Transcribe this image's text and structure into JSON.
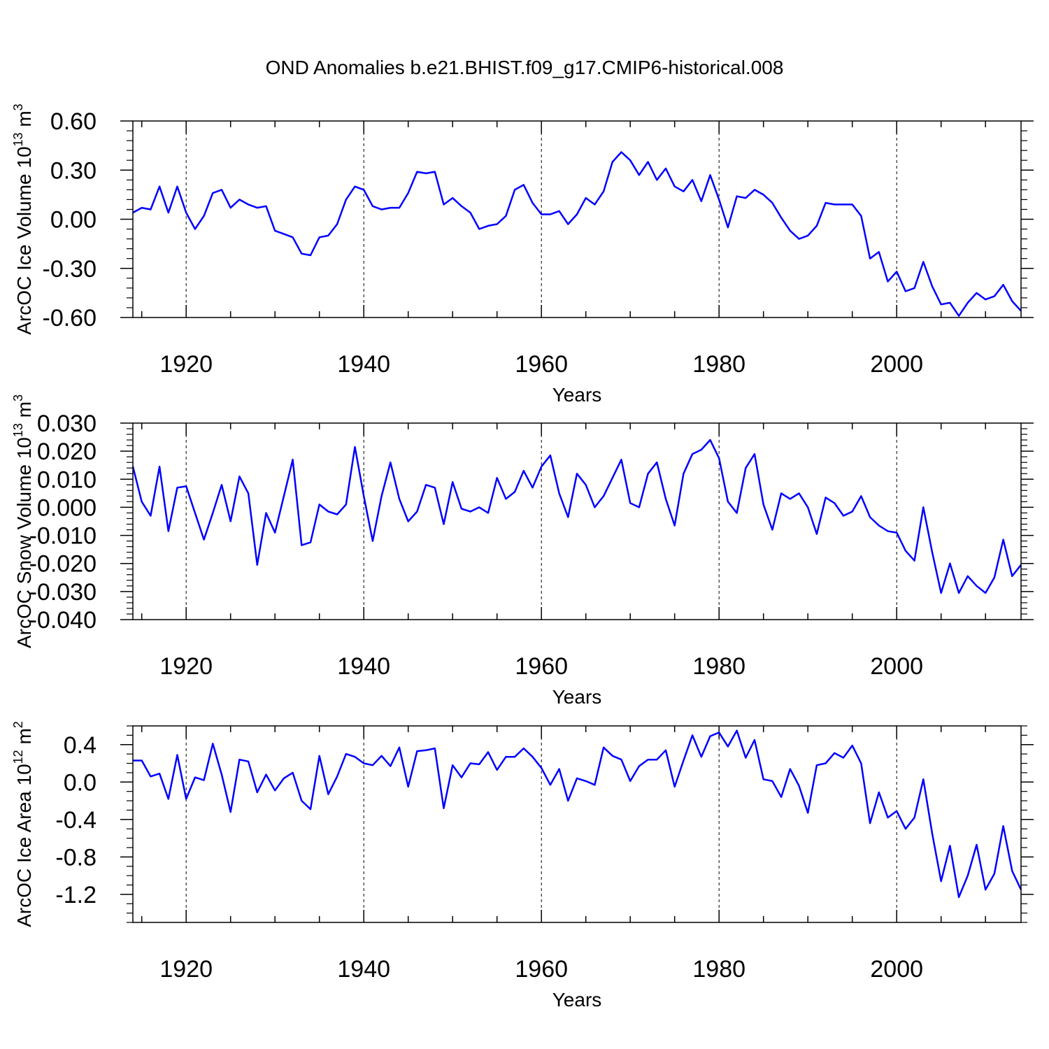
{
  "title": "OND Anomalies b.e21.BHIST.f09_g17.CMIP6-historical.008",
  "line_color": "#0000ff",
  "chart_data": [
    {
      "type": "line",
      "ylabel": "ArcOC Ice Volume 10",
      "ylabel_exp": "13",
      "ylabel_unit": " m",
      "ylabel_unit_exp": "3",
      "xlabel": "Years",
      "xlim": [
        1914,
        2014
      ],
      "ylim": [
        -0.6,
        0.6
      ],
      "xticks": [
        1920,
        1940,
        1960,
        1980,
        2000
      ],
      "xtick_labels": [
        "1920",
        "1940",
        "1960",
        "1980",
        "2000"
      ],
      "yticks": [
        -0.6,
        -0.3,
        0.0,
        0.3,
        0.6
      ],
      "ytick_labels": [
        "-0.60",
        "-0.30",
        "0.00",
        "0.30",
        "0.60"
      ],
      "yminor_step": 0.06,
      "x": [
        1914,
        1915,
        1916,
        1917,
        1918,
        1919,
        1920,
        1921,
        1922,
        1923,
        1924,
        1925,
        1926,
        1927,
        1928,
        1929,
        1930,
        1931,
        1932,
        1933,
        1934,
        1935,
        1936,
        1937,
        1938,
        1939,
        1940,
        1941,
        1942,
        1943,
        1944,
        1945,
        1946,
        1947,
        1948,
        1949,
        1950,
        1951,
        1952,
        1953,
        1954,
        1955,
        1956,
        1957,
        1958,
        1959,
        1960,
        1961,
        1962,
        1963,
        1964,
        1965,
        1966,
        1967,
        1968,
        1969,
        1970,
        1971,
        1972,
        1973,
        1974,
        1975,
        1976,
        1977,
        1978,
        1979,
        1980,
        1981,
        1982,
        1983,
        1984,
        1985,
        1986,
        1987,
        1988,
        1989,
        1990,
        1991,
        1992,
        1993,
        1994,
        1995,
        1996,
        1997,
        1998,
        1999,
        2000,
        2001,
        2002,
        2003,
        2004,
        2005,
        2006,
        2007,
        2008,
        2009,
        2010,
        2011,
        2012,
        2013,
        2014
      ],
      "values": [
        0.04,
        0.07,
        0.06,
        0.2,
        0.04,
        0.2,
        0.04,
        -0.06,
        0.02,
        0.16,
        0.18,
        0.07,
        0.12,
        0.09,
        0.07,
        0.08,
        -0.07,
        -0.09,
        -0.11,
        -0.21,
        -0.22,
        -0.11,
        -0.1,
        -0.03,
        0.12,
        0.2,
        0.18,
        0.08,
        0.06,
        0.07,
        0.07,
        0.16,
        0.29,
        0.28,
        0.29,
        0.09,
        0.13,
        0.08,
        0.04,
        -0.06,
        -0.04,
        -0.03,
        0.02,
        0.18,
        0.21,
        0.1,
        0.03,
        0.03,
        0.05,
        -0.03,
        0.03,
        0.13,
        0.09,
        0.17,
        0.35,
        0.41,
        0.36,
        0.27,
        0.35,
        0.24,
        0.31,
        0.2,
        0.17,
        0.24,
        0.11,
        0.27,
        0.12,
        -0.05,
        0.14,
        0.13,
        0.18,
        0.15,
        0.1,
        0.01,
        -0.07,
        -0.12,
        -0.1,
        -0.04,
        0.1,
        0.09,
        0.09,
        0.09,
        0.02,
        -0.24,
        -0.2,
        -0.38,
        -0.32,
        -0.44,
        -0.42,
        -0.26,
        -0.41,
        -0.52,
        -0.51,
        -0.59,
        -0.51,
        -0.45,
        -0.49,
        -0.47,
        -0.4,
        -0.5,
        -0.56
      ]
    },
    {
      "type": "line",
      "ylabel": "ArcOC Snow Volume 10",
      "ylabel_exp": "13",
      "ylabel_unit": " m",
      "ylabel_unit_exp": "3",
      "xlabel": "Years",
      "xlim": [
        1914,
        2014
      ],
      "ylim": [
        -0.04,
        0.03
      ],
      "xticks": [
        1920,
        1940,
        1960,
        1980,
        2000
      ],
      "xtick_labels": [
        "1920",
        "1940",
        "1960",
        "1980",
        "2000"
      ],
      "yticks": [
        -0.04,
        -0.03,
        -0.02,
        -0.01,
        0.0,
        0.01,
        0.02,
        0.03
      ],
      "ytick_labels": [
        "-0.040",
        "-0.030",
        "-0.020",
        "-0.010",
        "0.000",
        "0.010",
        "0.020",
        "0.030"
      ],
      "yminor_step": 0.002,
      "x": [
        1914,
        1915,
        1916,
        1917,
        1918,
        1919,
        1920,
        1921,
        1922,
        1923,
        1924,
        1925,
        1926,
        1927,
        1928,
        1929,
        1930,
        1931,
        1932,
        1933,
        1934,
        1935,
        1936,
        1937,
        1938,
        1939,
        1940,
        1941,
        1942,
        1943,
        1944,
        1945,
        1946,
        1947,
        1948,
        1949,
        1950,
        1951,
        1952,
        1953,
        1954,
        1955,
        1956,
        1957,
        1958,
        1959,
        1960,
        1961,
        1962,
        1963,
        1964,
        1965,
        1966,
        1967,
        1968,
        1969,
        1970,
        1971,
        1972,
        1973,
        1974,
        1975,
        1976,
        1977,
        1978,
        1979,
        1980,
        1981,
        1982,
        1983,
        1984,
        1985,
        1986,
        1987,
        1988,
        1989,
        1990,
        1991,
        1992,
        1993,
        1994,
        1995,
        1996,
        1997,
        1998,
        1999,
        2000,
        2001,
        2002,
        2003,
        2004,
        2005,
        2006,
        2007,
        2008,
        2009,
        2010,
        2011,
        2012,
        2013,
        2014
      ],
      "values": [
        0.0145,
        0.002,
        -0.003,
        0.0145,
        -0.0085,
        0.007,
        0.0075,
        -0.002,
        -0.0115,
        -0.002,
        0.008,
        -0.005,
        0.011,
        0.005,
        -0.0205,
        -0.002,
        -0.009,
        0.004,
        0.017,
        -0.0135,
        -0.0125,
        0.001,
        -0.0015,
        -0.0025,
        0.001,
        0.0215,
        0.004,
        -0.012,
        0.004,
        0.016,
        0.003,
        -0.005,
        -0.0015,
        0.008,
        0.007,
        -0.006,
        0.009,
        -0.0005,
        -0.0015,
        0.0,
        -0.002,
        0.0105,
        0.003,
        0.0055,
        0.013,
        0.007,
        0.0145,
        0.0185,
        0.005,
        -0.0035,
        0.012,
        0.008,
        0.0,
        0.004,
        0.0105,
        0.017,
        0.0015,
        0.0,
        0.012,
        0.016,
        0.003,
        -0.0065,
        0.012,
        0.019,
        0.0205,
        0.024,
        0.0175,
        0.002,
        -0.002,
        0.014,
        0.019,
        0.001,
        -0.008,
        0.005,
        0.003,
        0.005,
        0.0,
        -0.0095,
        0.0035,
        0.0015,
        -0.003,
        -0.0015,
        0.004,
        -0.0035,
        -0.0065,
        -0.0085,
        -0.009,
        -0.0155,
        -0.019,
        0.0,
        -0.016,
        -0.0305,
        -0.02,
        -0.0305,
        -0.0245,
        -0.028,
        -0.0305,
        -0.025,
        -0.0115,
        -0.0245,
        -0.0205
      ]
    },
    {
      "type": "line",
      "ylabel": "ArcOC Ice Area 10",
      "ylabel_exp": "12",
      "ylabel_unit": " m",
      "ylabel_unit_exp": "2",
      "xlabel": "Years",
      "xlim": [
        1914,
        2014
      ],
      "ylim": [
        -1.5,
        0.6
      ],
      "xticks": [
        1920,
        1940,
        1960,
        1980,
        2000
      ],
      "xtick_labels": [
        "1920",
        "1940",
        "1960",
        "1980",
        "2000"
      ],
      "yticks": [
        -1.2,
        -0.8,
        -0.4,
        0.0,
        0.4
      ],
      "ytick_labels": [
        "-1.2",
        "-0.8",
        "-0.4",
        "0.0",
        "0.4"
      ],
      "yminor_step": 0.1,
      "x": [
        1914,
        1915,
        1916,
        1917,
        1918,
        1919,
        1920,
        1921,
        1922,
        1923,
        1924,
        1925,
        1926,
        1927,
        1928,
        1929,
        1930,
        1931,
        1932,
        1933,
        1934,
        1935,
        1936,
        1937,
        1938,
        1939,
        1940,
        1941,
        1942,
        1943,
        1944,
        1945,
        1946,
        1947,
        1948,
        1949,
        1950,
        1951,
        1952,
        1953,
        1954,
        1955,
        1956,
        1957,
        1958,
        1959,
        1960,
        1961,
        1962,
        1963,
        1964,
        1965,
        1966,
        1967,
        1968,
        1969,
        1970,
        1971,
        1972,
        1973,
        1974,
        1975,
        1976,
        1977,
        1978,
        1979,
        1980,
        1981,
        1982,
        1983,
        1984,
        1985,
        1986,
        1987,
        1988,
        1989,
        1990,
        1991,
        1992,
        1993,
        1994,
        1995,
        1996,
        1997,
        1998,
        1999,
        2000,
        2001,
        2002,
        2003,
        2004,
        2005,
        2006,
        2007,
        2008,
        2009,
        2010,
        2011,
        2012,
        2013,
        2014
      ],
      "values": [
        0.23,
        0.23,
        0.06,
        0.09,
        -0.18,
        0.29,
        -0.18,
        0.05,
        0.02,
        0.41,
        0.08,
        -0.32,
        0.24,
        0.22,
        -0.11,
        0.08,
        -0.09,
        0.04,
        0.1,
        -0.2,
        -0.29,
        0.28,
        -0.13,
        0.06,
        0.3,
        0.27,
        0.2,
        0.18,
        0.28,
        0.17,
        0.37,
        -0.05,
        0.33,
        0.34,
        0.36,
        -0.28,
        0.18,
        0.05,
        0.2,
        0.19,
        0.32,
        0.13,
        0.27,
        0.27,
        0.36,
        0.27,
        0.15,
        -0.03,
        0.14,
        -0.2,
        0.04,
        0.01,
        -0.03,
        0.37,
        0.28,
        0.24,
        0.01,
        0.17,
        0.24,
        0.24,
        0.34,
        -0.05,
        0.23,
        0.5,
        0.27,
        0.49,
        0.53,
        0.38,
        0.55,
        0.26,
        0.45,
        0.03,
        0.01,
        -0.16,
        0.14,
        -0.04,
        -0.33,
        0.18,
        0.2,
        0.31,
        0.26,
        0.39,
        0.2,
        -0.44,
        -0.11,
        -0.38,
        -0.31,
        -0.5,
        -0.38,
        0.03,
        -0.55,
        -1.06,
        -0.68,
        -1.23,
        -1.0,
        -0.67,
        -1.15,
        -0.98,
        -0.47,
        -0.95,
        -1.15
      ]
    }
  ]
}
